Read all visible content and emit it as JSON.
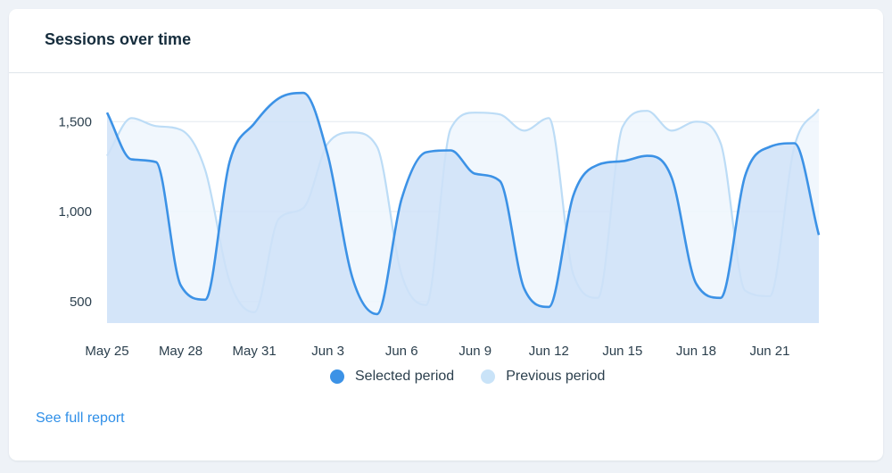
{
  "card": {
    "title": "Sessions over time",
    "report_link": "See full report"
  },
  "colors": {
    "selected_line": "#3c92e6",
    "selected_fill": "#cfe2f8",
    "previous_line": "#bcdcf6",
    "previous_fill": "#eef6fd",
    "grid": "#e3e9ef"
  },
  "legend": [
    {
      "label": "Selected period",
      "color": "#3c92e6"
    },
    {
      "label": "Previous period",
      "color": "#c9e3f8"
    }
  ],
  "chart_data": {
    "type": "area",
    "title": "Sessions over time",
    "xlabel": "",
    "ylabel": "",
    "ylim": [
      380,
      1700
    ],
    "yticks": [
      500,
      1000,
      1500
    ],
    "ytick_labels": [
      "500",
      "1,000",
      "1,500"
    ],
    "grid": true,
    "legend_position": "bottom",
    "x_tick_labels": [
      "May 25",
      "May 28",
      "May 31",
      "Jun 3",
      "Jun 6",
      "Jun 9",
      "Jun 12",
      "Jun 15",
      "Jun 18",
      "Jun 21"
    ],
    "x": [
      "May 25",
      "May 26",
      "May 27",
      "May 28",
      "May 29",
      "May 30",
      "May 31",
      "Jun 1",
      "Jun 2",
      "Jun 3",
      "Jun 4",
      "Jun 5",
      "Jun 6",
      "Jun 7",
      "Jun 8",
      "Jun 9",
      "Jun 10",
      "Jun 11",
      "Jun 12",
      "Jun 13",
      "Jun 14",
      "Jun 15",
      "Jun 16",
      "Jun 17",
      "Jun 18",
      "Jun 19",
      "Jun 20",
      "Jun 21",
      "Jun 22",
      "Jun 23"
    ],
    "series": [
      {
        "name": "Selected period",
        "values": [
          1550,
          1290,
          1275,
          590,
          510,
          1280,
          1490,
          1630,
          1660,
          1310,
          630,
          430,
          1070,
          1330,
          1340,
          1210,
          1170,
          570,
          470,
          1090,
          1260,
          1280,
          1310,
          1190,
          600,
          520,
          1200,
          1360,
          1380,
          870
        ]
      },
      {
        "name": "Previous period",
        "values": [
          1310,
          1520,
          1475,
          1455,
          1230,
          610,
          440,
          960,
          1020,
          1380,
          1440,
          1360,
          650,
          480,
          1460,
          1550,
          1540,
          1450,
          1520,
          650,
          520,
          1470,
          1560,
          1450,
          1500,
          1380,
          560,
          530,
          1360,
          1570
        ]
      }
    ]
  }
}
